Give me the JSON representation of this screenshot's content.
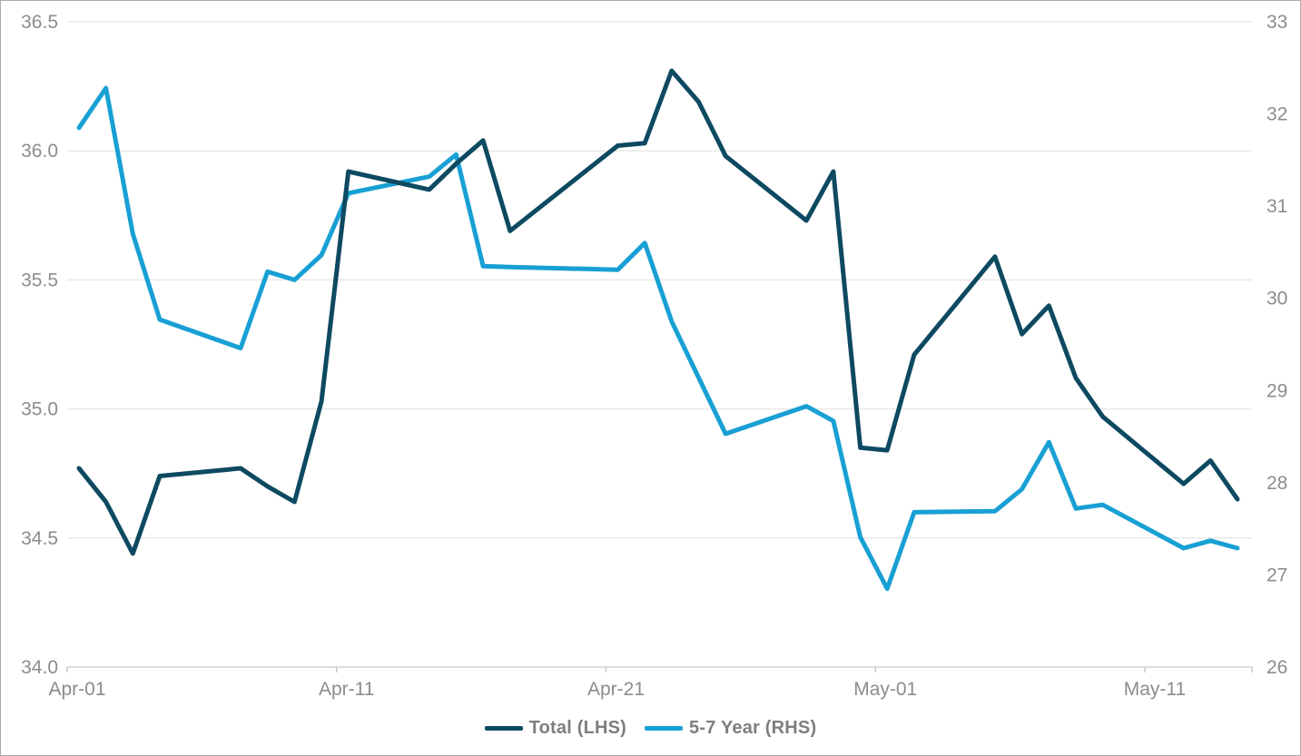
{
  "colors": {
    "background": "#FFFFFF",
    "frame_border": "#ABABAB",
    "gridline": "#E8E8E8",
    "axis_line": "#D2D2D2",
    "tick_mark": "#C9C9C9",
    "axis_label": "#8C8C8C",
    "legend_text": "#7E7E7E",
    "total_line": "#0D4A61",
    "five_seven_line": "#18A0D4"
  },
  "chart_data": {
    "type": "line",
    "legend_position": "bottom",
    "grid": true,
    "x_axis": {
      "tick_labels": [
        "Apr-01",
        "Apr-11",
        "Apr-21",
        "May-01",
        "May-11"
      ]
    },
    "left_axis": {
      "min": 34.0,
      "max": 36.5,
      "step": 0.5,
      "ticks": [
        "36.5",
        "36.0",
        "35.5",
        "35.0",
        "34.5",
        "34.0"
      ]
    },
    "right_axis": {
      "min": 26,
      "max": 33,
      "step": 1,
      "ticks": [
        "33",
        "32",
        "31",
        "30",
        "29",
        "28",
        "27",
        "26"
      ]
    },
    "dates": [
      "Apr-01",
      "Apr-02",
      "Apr-03",
      "Apr-04",
      "Apr-07",
      "Apr-08",
      "Apr-09",
      "Apr-10",
      "Apr-11",
      "Apr-14",
      "Apr-15",
      "Apr-16",
      "Apr-17",
      "Apr-21",
      "Apr-22",
      "Apr-23",
      "Apr-24",
      "Apr-25",
      "Apr-28",
      "Apr-29",
      "Apr-30",
      "May-01",
      "May-02",
      "May-05",
      "May-06",
      "May-07",
      "May-08",
      "May-09",
      "May-12",
      "May-13",
      "May-14"
    ],
    "series": [
      {
        "name": "Total (LHS)",
        "axis": "left",
        "color": "#0D4A61",
        "values": [
          34.77,
          34.64,
          34.44,
          34.74,
          34.77,
          34.7,
          34.64,
          35.03,
          35.92,
          35.85,
          35.95,
          36.04,
          35.69,
          36.02,
          36.03,
          36.31,
          36.19,
          35.98,
          35.73,
          35.92,
          34.85,
          34.84,
          35.21,
          35.59,
          35.29,
          35.4,
          35.12,
          34.97,
          34.71,
          34.8,
          34.65
        ]
      },
      {
        "name": "5-7 Year (RHS)",
        "axis": "right",
        "color": "#18A0D4",
        "values": [
          31.85,
          32.28,
          30.7,
          29.77,
          29.46,
          30.29,
          30.2,
          30.47,
          31.14,
          31.32,
          31.56,
          30.35,
          30.34,
          30.31,
          30.6,
          29.75,
          29.14,
          28.53,
          28.83,
          28.67,
          27.41,
          26.85,
          27.68,
          27.69,
          27.93,
          28.44,
          27.72,
          27.76,
          27.29,
          27.37,
          27.29
        ]
      }
    ]
  }
}
